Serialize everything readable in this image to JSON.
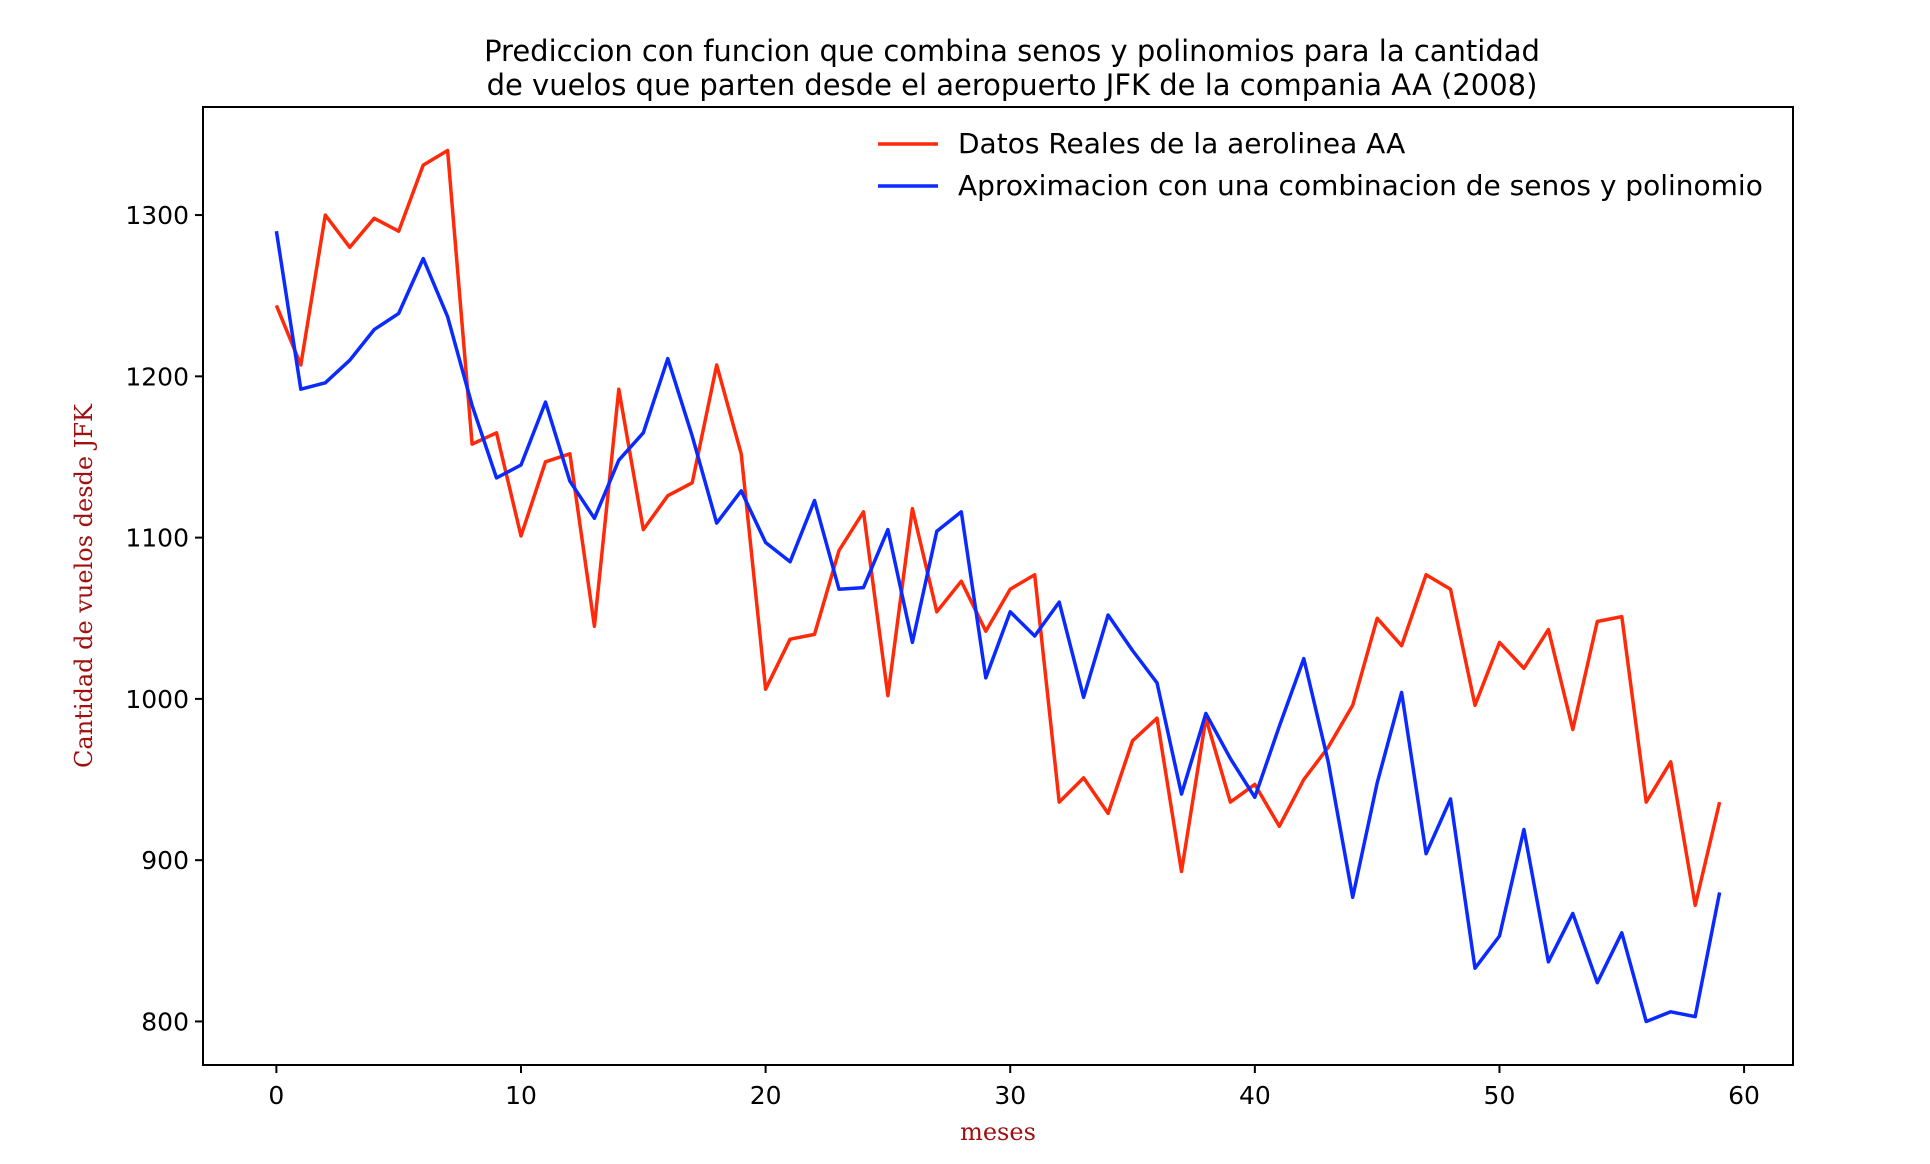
{
  "chart_data": {
    "type": "line",
    "title_line1": "Prediccion con funcion que combina senos y polinomios para la cantidad",
    "title_line2": "de vuelos que parten desde el aeropuerto JFK de la compania AA (2008)",
    "xlabel": "meses",
    "ylabel": "Cantidad de vuelos desde JFK",
    "xlim": [
      -3,
      62
    ],
    "ylim": [
      773,
      1367
    ],
    "xticks": [
      0,
      10,
      20,
      30,
      40,
      50,
      60
    ],
    "yticks": [
      800,
      900,
      1000,
      1100,
      1200,
      1300
    ],
    "grid": false,
    "legend_position": "top-right",
    "x": [
      0,
      1,
      2,
      3,
      4,
      5,
      6,
      7,
      8,
      9,
      10,
      11,
      12,
      13,
      14,
      15,
      16,
      17,
      18,
      19,
      20,
      21,
      22,
      23,
      24,
      25,
      26,
      27,
      28,
      29,
      30,
      31,
      32,
      33,
      34,
      35,
      36,
      37,
      38,
      39,
      40,
      41,
      42,
      43,
      44,
      45,
      46,
      47,
      48,
      49,
      50,
      51,
      52,
      53,
      54,
      55,
      56,
      57,
      58,
      59
    ],
    "series": [
      {
        "name": "Datos Reales de la aerolinea AA",
        "color": "#ff2a0a",
        "values": [
          1244,
          1207,
          1300,
          1280,
          1298,
          1290,
          1331,
          1340,
          1158,
          1165,
          1101,
          1147,
          1152,
          1045,
          1192,
          1105,
          1126,
          1134,
          1207,
          1152,
          1006,
          1037,
          1040,
          1092,
          1116,
          1002,
          1118,
          1054,
          1073,
          1042,
          1068,
          1077,
          936,
          951,
          929,
          974,
          988,
          893,
          988,
          936,
          947,
          921,
          950,
          970,
          996,
          1050,
          1033,
          1077,
          1068,
          996,
          1035,
          1019,
          1043,
          981,
          1048,
          1051,
          936,
          961,
          872,
          936
        ]
      },
      {
        "name": "Aproximacion con una combinacion de senos y polinomio",
        "color": "#0a2aff",
        "values": [
          1290,
          1192,
          1196,
          1210,
          1229,
          1239,
          1273,
          1237,
          1182,
          1137,
          1145,
          1184,
          1135,
          1112,
          1148,
          1165,
          1211,
          1163,
          1109,
          1129,
          1097,
          1085,
          1123,
          1068,
          1069,
          1105,
          1035,
          1104,
          1116,
          1013,
          1054,
          1039,
          1060,
          1001,
          1052,
          1030,
          1010,
          941,
          991,
          963,
          939,
          983,
          1025,
          961,
          877,
          948,
          1004,
          904,
          938,
          833,
          853,
          919,
          837,
          867,
          824,
          855,
          800,
          806,
          803,
          880
        ]
      }
    ]
  }
}
